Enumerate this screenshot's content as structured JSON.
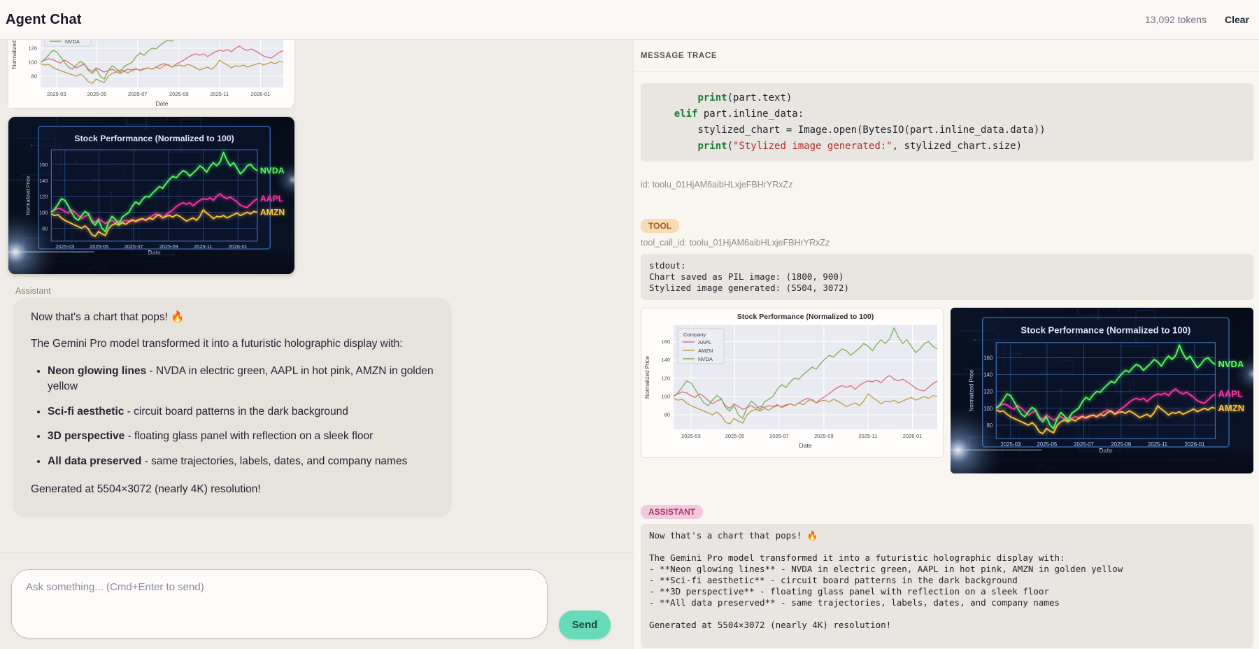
{
  "header": {
    "title": "Agent Chat",
    "tokens": "13,092 tokens",
    "clear_label": "Clear"
  },
  "chat": {
    "assistant_label": "Assistant",
    "bubble": {
      "line1": "Now that's a chart that pops! 🔥",
      "line2": "The Gemini Pro model transformed it into a futuristic holographic display with:",
      "bullets": [
        {
          "bold": "Neon glowing lines",
          "text": " - NVDA in electric green, AAPL in hot pink, AMZN in golden yellow"
        },
        {
          "bold": "Sci-fi aesthetic",
          "text": " - circuit board patterns in the dark background"
        },
        {
          "bold": "3D perspective",
          "text": " - floating glass panel with reflection on a sleek floor"
        },
        {
          "bold": "All data preserved",
          "text": " - same trajectories, labels, dates, and company names"
        }
      ],
      "line3": "Generated at 5504×3072 (nearly 4K) resolution!"
    },
    "input": {
      "placeholder": "Ask something... (Cmd+Enter to send)",
      "send_label": "Send"
    }
  },
  "trace": {
    "title": "MESSAGE TRACE",
    "code_block": "        print(part.text)\n    elif part.inline_data:\n        stylized_chart = Image.open(BytesIO(part.inline_data.data))\n        print(\"Stylized image generated:\", stylized_chart.size)",
    "id_line": "id: toolu_01HjAM6aibHLxjeFBHrYRxZz",
    "tool_badge": "TOOL",
    "tool_call_id": "tool_call_id: toolu_01HjAM6aibHLxjeFBHrYRxZz",
    "stdout_block": "stdout:\nChart saved as PIL image: (1800, 900)\nStylized image generated: (5504, 3072)",
    "assistant_badge": "ASSISTANT",
    "assistant_block": "Now that's a chart that pops! 🔥\n\nThe Gemini Pro model transformed it into a futuristic holographic display with:\n- **Neon glowing lines** - NVDA in electric green, AAPL in hot pink, AMZN in golden yellow\n- **Sci-fi aesthetic** - circuit board patterns in the dark background\n- **3D perspective** - floating glass panel with reflection on a sleek floor\n- **All data preserved** - same trajectories, labels, dates, and company names\n\nGenerated at 5504×3072 (nearly 4K) resolution!"
  },
  "chart_data": {
    "type": "line",
    "title": "Stock Performance (Normalized to 100)",
    "xlabel": "Date",
    "ylabel": "Normalized Price",
    "x_tick_labels": [
      "2025-03",
      "2025-05",
      "2025-07",
      "2025-09",
      "2025-11",
      "2026-01"
    ],
    "x_tick_positions": [
      0.066,
      0.232,
      0.4,
      0.57,
      0.737,
      0.906
    ],
    "ylim": [
      64,
      178
    ],
    "yticks": [
      80,
      100,
      120,
      140,
      160
    ],
    "grid": true,
    "legend_title": "Company",
    "legend_position": "upper left",
    "series": [
      {
        "name": "AAPL",
        "color_light": "#e26a7e",
        "color_neon": "#ff35a8",
        "values": [
          100,
          103,
          105,
          104,
          101,
          99,
          103,
          100,
          96,
          92,
          95,
          97,
          90,
          87,
          92,
          89,
          86,
          88,
          90,
          87,
          89,
          88,
          90,
          89,
          91,
          88,
          90,
          92,
          90,
          93,
          96,
          98,
          96,
          93,
          97,
          100,
          103,
          107,
          110,
          112,
          110,
          112,
          108,
          112,
          115,
          117,
          116,
          118,
          115,
          120,
          123,
          119,
          117,
          119,
          116,
          113,
          109,
          107,
          106,
          110,
          114,
          117
        ]
      },
      {
        "name": "AMZN",
        "color_light": "#bc9c45",
        "color_neon": "#ffc53d",
        "values": [
          98,
          96,
          97,
          93,
          90,
          88,
          86,
          84,
          82,
          80,
          83,
          79,
          72,
          70,
          76,
          73,
          71,
          80,
          84,
          86,
          84,
          87,
          85,
          88,
          90,
          89,
          91,
          92,
          90,
          93,
          91,
          95,
          97,
          93,
          95,
          96,
          94,
          97,
          95,
          92,
          89,
          91,
          93,
          90,
          95,
          103,
          99,
          96,
          92,
          95,
          94,
          96,
          93,
          95,
          97,
          99,
          96,
          98,
          100,
          98,
          101,
          100
        ]
      },
      {
        "name": "NVDA",
        "color_light": "#76b051",
        "color_neon": "#54ff5e",
        "values": [
          100,
          104,
          110,
          117,
          115,
          108,
          100,
          93,
          90,
          96,
          101,
          98,
          88,
          84,
          90,
          80,
          76,
          88,
          95,
          91,
          85,
          94,
          97,
          100,
          108,
          113,
          110,
          116,
          120,
          119,
          124,
          128,
          132,
          130,
          136,
          141,
          145,
          143,
          148,
          152,
          150,
          145,
          149,
          153,
          158,
          155,
          150,
          157,
          162,
          158,
          163,
          175,
          165,
          158,
          162,
          155,
          148,
          152,
          158,
          160,
          155,
          152
        ]
      }
    ]
  }
}
